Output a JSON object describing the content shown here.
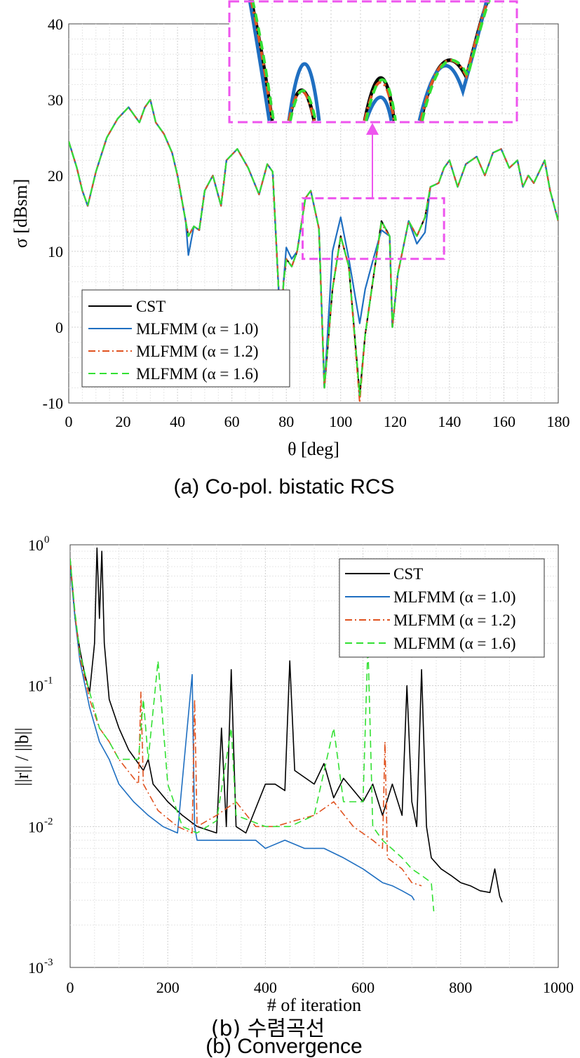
{
  "chart_data": [
    {
      "type": "line",
      "caption": "(a)  Co-pol.  bistatic  RCS",
      "xlabel": "θ [deg]",
      "ylabel": "σ [dBsm]",
      "xlim": [
        0,
        180
      ],
      "ylim": [
        -10,
        40
      ],
      "xticks": [
        "0",
        "20",
        "40",
        "60",
        "80",
        "100",
        "120",
        "140",
        "160",
        "180"
      ],
      "yticks": [
        "-10",
        "0",
        "10",
        "20",
        "30",
        "40"
      ],
      "grid": true,
      "legend_position": "bottom-left",
      "zoom_box": {
        "x": [
          86,
          138
        ],
        "y": [
          9,
          17
        ]
      },
      "colors": {
        "CST": "#000000",
        "MLFMM (α = 1.0)": "#1f6fc1",
        "MLFMM (α = 1.2)": "#e0521f",
        "MLFMM (α = 1.6)": "#33e033",
        "zoom": "#ee55ee"
      },
      "series": [
        {
          "name": "CST",
          "style": "solid"
        },
        {
          "name": "MLFMM (α = 1.0)",
          "style": "solid"
        },
        {
          "name": "MLFMM (α = 1.2)",
          "style": "dashdot"
        },
        {
          "name": "MLFMM (α = 1.6)",
          "style": "dashed"
        }
      ],
      "x": [
        0,
        3,
        5,
        7,
        10,
        14,
        18,
        22,
        26,
        28,
        30,
        32,
        35,
        38,
        40,
        43,
        44,
        46,
        48,
        50,
        53,
        56,
        58,
        62,
        66,
        70,
        73,
        75,
        78,
        79,
        80,
        82,
        84,
        87,
        89,
        92,
        94,
        97,
        100,
        103,
        107,
        109,
        112,
        115,
        118,
        119,
        121,
        125,
        128,
        131,
        133,
        136,
        138,
        140,
        143,
        146,
        150,
        153,
        156,
        159,
        162,
        165,
        167,
        169,
        171,
        175,
        177,
        180
      ],
      "cst": [
        24.5,
        21,
        18,
        16,
        20.5,
        25,
        27.5,
        29,
        27,
        29,
        30,
        27,
        25.5,
        23,
        20,
        14,
        12,
        13.3,
        12.8,
        18,
        20,
        16,
        22,
        23.5,
        21,
        17.5,
        21.5,
        20.5,
        -1,
        6,
        9,
        8,
        10,
        17,
        18,
        13,
        -8,
        5,
        12,
        8,
        -9,
        -1,
        6.5,
        14,
        12,
        0,
        7,
        14,
        12,
        14.5,
        18.5,
        19,
        21,
        22,
        18.5,
        21.5,
        22.5,
        20,
        23,
        23.5,
        21,
        22,
        18.5,
        20,
        19,
        22,
        18,
        14
      ],
      "alpha10": [
        24.5,
        21,
        18,
        16,
        20.5,
        25,
        27.5,
        29,
        27,
        29,
        30,
        27,
        25.5,
        23,
        20,
        14,
        9.5,
        13.3,
        12.8,
        18,
        20,
        16,
        22,
        23.5,
        21,
        17.5,
        21.5,
        20.5,
        -1,
        6,
        10.5,
        9,
        10,
        17,
        18,
        13,
        -8,
        10,
        14.5,
        9,
        0.5,
        5,
        9,
        12.8,
        12,
        0,
        7,
        14,
        11,
        12.5,
        18.5,
        19,
        21,
        22,
        18.5,
        21.5,
        22.5,
        20,
        23,
        23.5,
        21,
        22,
        18.5,
        20,
        19,
        22,
        18,
        14
      ],
      "alpha12": [
        24.5,
        21,
        18,
        16,
        20.5,
        25,
        27.5,
        29,
        27,
        29,
        30,
        27,
        25.5,
        23,
        20,
        14,
        12,
        13.3,
        12.8,
        18,
        20,
        16,
        22,
        23.5,
        21,
        17.5,
        21.5,
        20.5,
        -1,
        6,
        9,
        8,
        10,
        17,
        18,
        13,
        -8,
        5,
        12,
        8,
        -10,
        -1,
        6.5,
        13.6,
        12,
        0,
        7,
        14,
        12,
        14.5,
        18.5,
        19,
        21,
        22,
        18.5,
        21.5,
        22.5,
        20,
        23,
        23.5,
        21,
        22,
        18.5,
        20,
        19,
        22,
        18,
        14
      ],
      "alpha16": [
        24.5,
        21,
        18,
        16,
        20.5,
        25,
        27.5,
        29,
        27,
        29,
        30,
        27,
        25.5,
        23,
        20,
        14,
        12,
        13.3,
        12.8,
        18,
        20,
        16,
        22,
        23.5,
        21,
        17.5,
        21.5,
        20.5,
        -1,
        6,
        9,
        8,
        10,
        17,
        18,
        13,
        -8,
        5,
        12,
        8,
        -9,
        -1,
        6.5,
        14,
        12,
        0,
        7,
        14,
        12,
        14.5,
        18.5,
        19,
        21,
        22,
        18.5,
        21.5,
        22.5,
        20,
        23,
        23.5,
        21,
        22,
        18.5,
        20,
        19,
        22,
        18,
        14
      ]
    },
    {
      "type": "line",
      "caption_ko": "(b)  수렴곡선",
      "caption": "(b)  Convergence",
      "xlabel": "# of iteration",
      "ylabel": "||r|| / ||b||",
      "xlim": [
        0,
        1000
      ],
      "ylim": [
        0.001,
        1
      ],
      "yscale": "log",
      "xticks": [
        "0",
        "200",
        "400",
        "600",
        "800",
        "1000"
      ],
      "yticks": [
        {
          "base": "10",
          "exp": "0"
        },
        {
          "base": "10",
          "exp": "-1"
        },
        {
          "base": "10",
          "exp": "-2"
        },
        {
          "base": "10",
          "exp": "-3"
        }
      ],
      "grid": true,
      "legend_position": "top-right",
      "series": [
        {
          "name": "CST",
          "final_iteration": 885,
          "x": [
            0,
            10,
            20,
            30,
            40,
            50,
            55,
            60,
            65,
            70,
            80,
            100,
            120,
            150,
            160,
            170,
            200,
            230,
            260,
            300,
            310,
            320,
            330,
            340,
            360,
            400,
            420,
            440,
            450,
            460,
            500,
            520,
            540,
            560,
            600,
            620,
            640,
            660,
            680,
            690,
            700,
            710,
            720,
            730,
            740,
            760,
            780,
            800,
            820,
            840,
            860,
            870,
            880,
            885
          ],
          "y": [
            0.8,
            0.3,
            0.18,
            0.12,
            0.09,
            0.2,
            0.95,
            0.3,
            0.9,
            0.2,
            0.08,
            0.05,
            0.035,
            0.025,
            0.03,
            0.02,
            0.015,
            0.012,
            0.01,
            0.009,
            0.05,
            0.01,
            0.13,
            0.01,
            0.009,
            0.02,
            0.02,
            0.018,
            0.15,
            0.025,
            0.02,
            0.028,
            0.016,
            0.022,
            0.015,
            0.02,
            0.012,
            0.02,
            0.012,
            0.1,
            0.015,
            0.01,
            0.13,
            0.01,
            0.006,
            0.005,
            0.0045,
            0.004,
            0.0038,
            0.0035,
            0.0034,
            0.005,
            0.0032,
            0.0029
          ]
        },
        {
          "name": "MLFMM (α = 1.0)",
          "final_iteration": 705,
          "x": [
            0,
            10,
            20,
            40,
            60,
            80,
            100,
            130,
            160,
            190,
            220,
            250,
            255,
            260,
            300,
            340,
            380,
            400,
            440,
            480,
            520,
            560,
            600,
            640,
            660,
            680,
            700,
            705
          ],
          "y": [
            0.7,
            0.3,
            0.15,
            0.07,
            0.04,
            0.03,
            0.02,
            0.015,
            0.012,
            0.01,
            0.009,
            0.12,
            0.01,
            0.008,
            0.008,
            0.008,
            0.008,
            0.007,
            0.008,
            0.007,
            0.007,
            0.006,
            0.005,
            0.004,
            0.0038,
            0.0035,
            0.0032,
            0.003
          ]
        },
        {
          "name": "MLFMM (α = 1.2)",
          "final_iteration": 720,
          "x": [
            0,
            10,
            20,
            40,
            60,
            80,
            100,
            140,
            145,
            150,
            180,
            220,
            250,
            255,
            260,
            300,
            340,
            380,
            420,
            460,
            500,
            540,
            580,
            620,
            640,
            645,
            650,
            680,
            700,
            720
          ],
          "y": [
            0.75,
            0.32,
            0.16,
            0.08,
            0.05,
            0.04,
            0.03,
            0.02,
            0.09,
            0.02,
            0.013,
            0.01,
            0.009,
            0.08,
            0.01,
            0.012,
            0.015,
            0.01,
            0.01,
            0.011,
            0.012,
            0.015,
            0.01,
            0.008,
            0.007,
            0.04,
            0.006,
            0.005,
            0.004,
            0.0038
          ]
        },
        {
          "name": "MLFMM (α = 1.6)",
          "final_iteration": 745,
          "x": [
            0,
            10,
            20,
            40,
            60,
            80,
            100,
            140,
            150,
            160,
            180,
            200,
            230,
            260,
            300,
            330,
            340,
            400,
            450,
            500,
            540,
            560,
            600,
            610,
            620,
            640,
            680,
            700,
            720,
            740,
            745
          ],
          "y": [
            0.8,
            0.33,
            0.17,
            0.09,
            0.05,
            0.04,
            0.03,
            0.03,
            0.08,
            0.03,
            0.15,
            0.02,
            0.01,
            0.009,
            0.011,
            0.05,
            0.012,
            0.01,
            0.01,
            0.012,
            0.05,
            0.015,
            0.015,
            0.2,
            0.01,
            0.008,
            0.006,
            0.005,
            0.0045,
            0.004,
            0.0025
          ]
        }
      ]
    }
  ]
}
